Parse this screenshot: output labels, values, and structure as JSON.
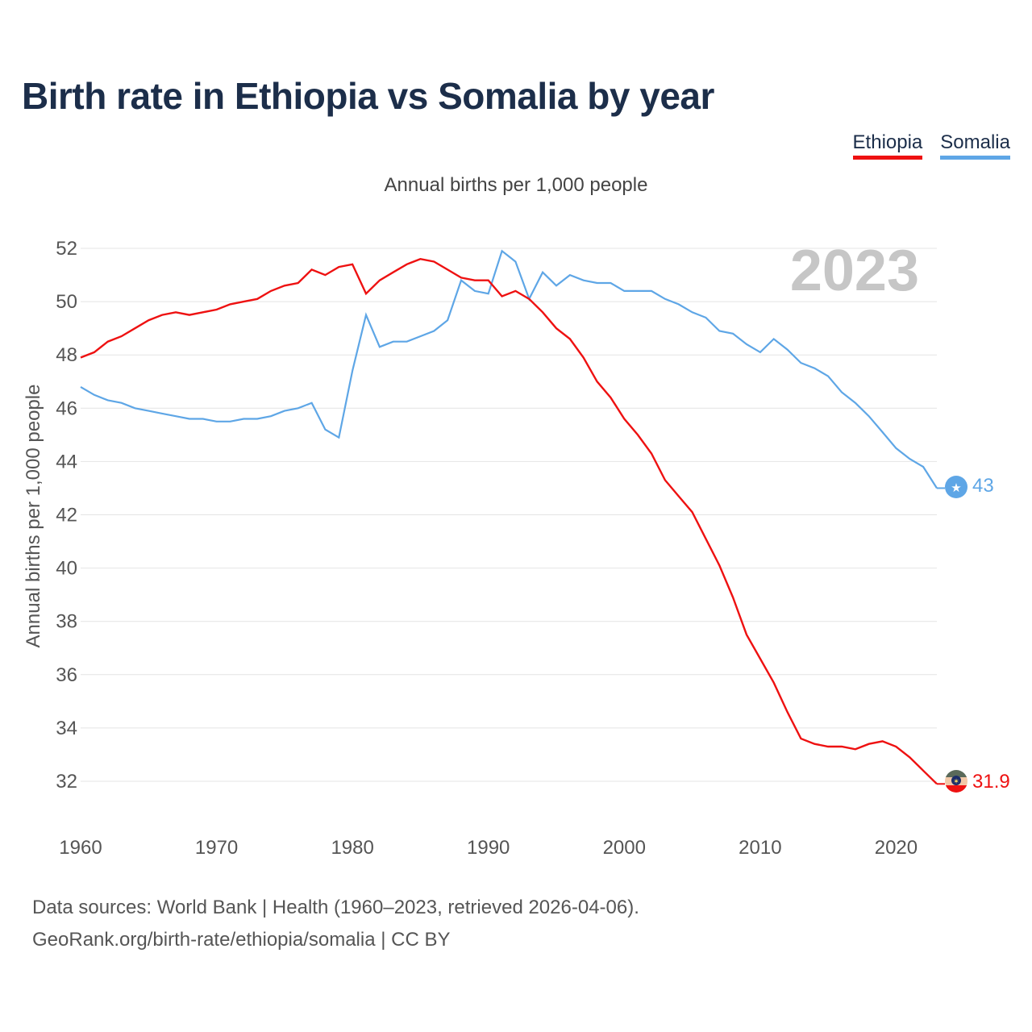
{
  "title": "Birth rate in Ethiopia vs Somalia by year",
  "subtitle": "Annual births per 1,000 people",
  "source_line1": "Data sources: World Bank | Health (1960–2023, retrieved 2026-04-06).",
  "source_line2": "GeoRank.org/birth-rate/ethiopia/somalia | CC BY",
  "colors": {
    "Ethiopia": "#ee1111",
    "Somalia": "#5ea6e6",
    "grid": "#e4e4e4",
    "title": "#1c2e4a"
  },
  "chart_data": {
    "type": "line",
    "title": "Birth rate in Ethiopia vs Somalia by year",
    "ylabel": "Annual births per 1,000 people",
    "xlabel": "",
    "year_watermark": "2023",
    "xlim": [
      1960,
      2023
    ],
    "ylim": [
      31,
      52.3
    ],
    "x_ticks": [
      1960,
      1970,
      1980,
      1990,
      2000,
      2010,
      2020
    ],
    "y_ticks": [
      32,
      34,
      36,
      38,
      40,
      42,
      44,
      46,
      48,
      50,
      52
    ],
    "legend_position": "top-right",
    "x": [
      1960,
      1961,
      1962,
      1963,
      1964,
      1965,
      1966,
      1967,
      1968,
      1969,
      1970,
      1971,
      1972,
      1973,
      1974,
      1975,
      1976,
      1977,
      1978,
      1979,
      1980,
      1981,
      1982,
      1983,
      1984,
      1985,
      1986,
      1987,
      1988,
      1989,
      1990,
      1991,
      1992,
      1993,
      1994,
      1995,
      1996,
      1997,
      1998,
      1999,
      2000,
      2001,
      2002,
      2003,
      2004,
      2005,
      2006,
      2007,
      2008,
      2009,
      2010,
      2011,
      2012,
      2013,
      2014,
      2015,
      2016,
      2017,
      2018,
      2019,
      2020,
      2021,
      2022,
      2023
    ],
    "series": [
      {
        "name": "Ethiopia",
        "end_label": "31.9",
        "values": [
          47.9,
          48.1,
          48.5,
          48.7,
          49.0,
          49.3,
          49.5,
          49.6,
          49.5,
          49.6,
          49.7,
          49.9,
          50.0,
          50.1,
          50.4,
          50.6,
          50.7,
          51.2,
          51.0,
          51.3,
          51.4,
          50.3,
          50.8,
          51.1,
          51.4,
          51.6,
          51.5,
          51.2,
          50.9,
          50.8,
          50.8,
          50.2,
          50.4,
          50.1,
          49.6,
          49.0,
          48.6,
          47.9,
          47.0,
          46.4,
          45.6,
          45.0,
          44.3,
          43.3,
          42.7,
          42.1,
          41.1,
          40.1,
          38.9,
          37.5,
          36.6,
          35.7,
          34.6,
          33.6,
          33.4,
          33.3,
          33.3,
          33.2,
          33.4,
          33.5,
          33.3,
          32.9,
          32.4,
          31.9
        ]
      },
      {
        "name": "Somalia",
        "end_label": "43",
        "values": [
          46.8,
          46.5,
          46.3,
          46.2,
          46.0,
          45.9,
          45.8,
          45.7,
          45.6,
          45.6,
          45.5,
          45.5,
          45.6,
          45.6,
          45.7,
          45.9,
          46.0,
          46.2,
          45.2,
          44.9,
          47.4,
          49.5,
          48.3,
          48.5,
          48.5,
          48.7,
          48.9,
          49.3,
          50.8,
          50.4,
          50.3,
          51.9,
          51.5,
          50.1,
          51.1,
          50.6,
          51.0,
          50.8,
          50.7,
          50.7,
          50.4,
          50.4,
          50.4,
          50.1,
          49.9,
          49.6,
          49.4,
          48.9,
          48.8,
          48.4,
          48.1,
          48.6,
          48.2,
          47.7,
          47.5,
          47.2,
          46.6,
          46.2,
          45.7,
          45.1,
          44.5,
          44.1,
          43.8,
          43.0
        ]
      }
    ]
  }
}
